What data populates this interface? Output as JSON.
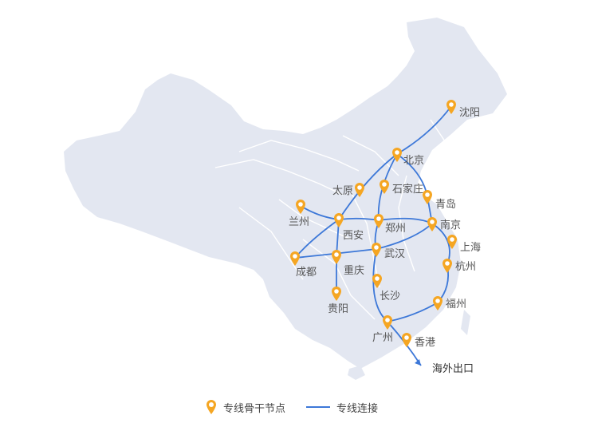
{
  "colors": {
    "land": "#e3e7f1",
    "border": "#ffffff",
    "route": "#3d78d8",
    "pin_outer": "#f5a623",
    "pin_inner": "#ffffff"
  },
  "cities": [
    {
      "id": "shenyang",
      "name": "沈阳"
    },
    {
      "id": "beijing",
      "name": "北京"
    },
    {
      "id": "taiyuan",
      "name": "太原"
    },
    {
      "id": "shijiazhuang",
      "name": "石家庄"
    },
    {
      "id": "qingdao",
      "name": "青岛"
    },
    {
      "id": "lanzhou",
      "name": "兰州"
    },
    {
      "id": "xian",
      "name": "西安"
    },
    {
      "id": "zhengzhou",
      "name": "郑州"
    },
    {
      "id": "nanjing",
      "name": "南京"
    },
    {
      "id": "shanghai",
      "name": "上海"
    },
    {
      "id": "chengdu",
      "name": "成都"
    },
    {
      "id": "chongqing",
      "name": "重庆"
    },
    {
      "id": "wuhan",
      "name": "武汉"
    },
    {
      "id": "hangzhou",
      "name": "杭州"
    },
    {
      "id": "guiyang",
      "name": "贵阳"
    },
    {
      "id": "changsha",
      "name": "长沙"
    },
    {
      "id": "fuzhou",
      "name": "福州"
    },
    {
      "id": "guangzhou",
      "name": "广州"
    },
    {
      "id": "hongkong",
      "name": "香港"
    }
  ],
  "export_label": "海外出口",
  "legend": {
    "node_label": "专线骨干节点",
    "line_label": "专线连接"
  }
}
